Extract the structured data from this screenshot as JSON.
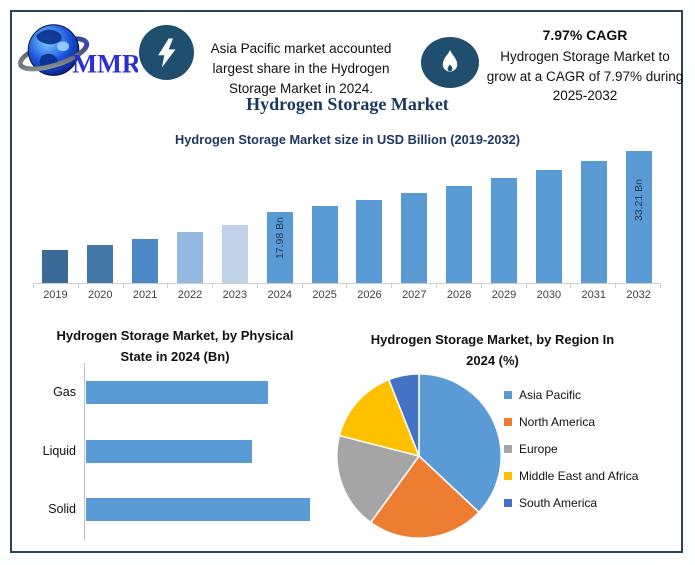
{
  "page": {
    "background": "#FFFFFF",
    "frame_border_color": "#2B4257",
    "accent_navy": "#1F4E6E"
  },
  "header": {
    "logo": {
      "text": "MMR",
      "icon": "globe-swoosh-logo",
      "text_color": "#2B2FD4"
    },
    "highlight": {
      "icon": "lightning-icon",
      "icon_bg": "#1F4E6E",
      "text": "Asia Pacific market accounted largest share in the Hydrogen Storage Market in 2024."
    },
    "cagr": {
      "icon": "flame-icon",
      "icon_bg": "#1F4E6E",
      "title": "7.97% CAGR",
      "text": "Hydrogen Storage Market to grow at a CAGR of 7.97% during 2025-2032"
    }
  },
  "main_title": {
    "text": "Hydrogen Storage Market",
    "color": "#17375E"
  },
  "chart_data": [
    {
      "type": "bar",
      "title": "Hydrogen Storage Market size in USD Billion (2019-2032)",
      "unit": "USD Billion",
      "categories": [
        "2019",
        "2020",
        "2021",
        "2022",
        "2023",
        "2024",
        "2025",
        "2026",
        "2027",
        "2028",
        "2029",
        "2030",
        "2031",
        "2032"
      ],
      "values": [
        8.4,
        9.6,
        11.1,
        12.8,
        14.6,
        17.98,
        19.41,
        20.96,
        22.63,
        24.43,
        26.38,
        28.48,
        30.75,
        33.21
      ],
      "data_labels": {
        "2024": "17.98 Bn",
        "2032": "33.21 Bn"
      },
      "bar_colors": [
        "#3A6A98",
        "#4377A8",
        "#4C88C6",
        "#94B8DF",
        "#C0D2EA",
        "#5B9BD5",
        "#5B9BD5",
        "#5B9BD5",
        "#5B9BD5",
        "#5B9BD5",
        "#5B9BD5",
        "#5B9BD5",
        "#5B9BD5",
        "#5B9BD5"
      ],
      "xlabel": "",
      "ylabel": "",
      "grid": false,
      "axis_color": "#D0CECE",
      "legend_position": "none"
    },
    {
      "type": "bar-horizontal",
      "title": "Hydrogen Storage Market, by Physical State in 2024 (Bn)",
      "unit": "Bn",
      "categories": [
        "Gas",
        "Liquid",
        "Solid"
      ],
      "values": [
        5.7,
        5.2,
        7.0
      ],
      "bar_color": "#5B9BD5",
      "xlabel": "",
      "ylabel": "",
      "grid": false,
      "legend_position": "none"
    },
    {
      "type": "pie",
      "title": "Hydrogen Storage Market, by Region In 2024 (%)",
      "labels": [
        "Asia Pacific",
        "North America",
        "Europe",
        "Middle East and Africa",
        "South America"
      ],
      "values": [
        37,
        23,
        19,
        15,
        6
      ],
      "colors": [
        "#5B9BD5",
        "#ED7D31",
        "#A5A5A5",
        "#FFC000",
        "#4472C4"
      ],
      "legend_position": "right",
      "slice_border_color": "#FFFFFF"
    }
  ]
}
